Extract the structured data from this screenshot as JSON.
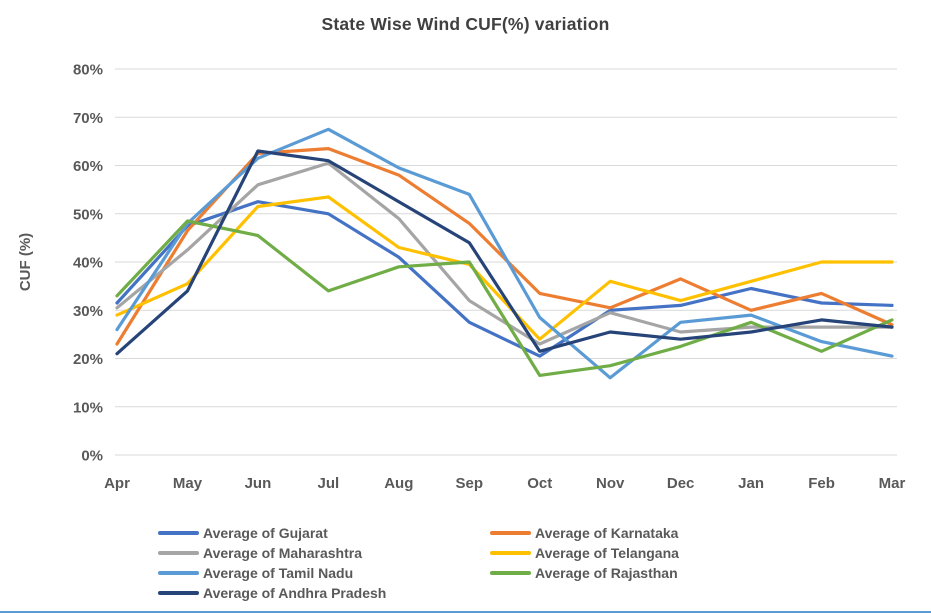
{
  "chart_data": {
    "type": "line",
    "title": "State Wise Wind CUF(%) variation",
    "ylabel": "CUF (%)",
    "categories": [
      "Apr",
      "May",
      "Jun",
      "Jul",
      "Aug",
      "Sep",
      "Oct",
      "Nov",
      "Dec",
      "Jan",
      "Feb",
      "Mar"
    ],
    "y_ticks": [
      "0%",
      "10%",
      "20%",
      "30%",
      "40%",
      "50%",
      "60%",
      "70%",
      "80%"
    ],
    "ylim": [
      0,
      80
    ],
    "grid": true,
    "legend_position": "bottom, two columns",
    "series": [
      {
        "name": "Average of Gujarat",
        "key": "gujarat",
        "color": "#4472C4",
        "values": [
          31.5,
          47.5,
          52.5,
          50,
          41,
          27.5,
          20.5,
          30,
          31,
          34.5,
          31.5,
          31
        ]
      },
      {
        "name": "Average of Karnataka",
        "key": "karnataka",
        "color": "#ED7D31",
        "values": [
          23,
          46.5,
          62.5,
          63.5,
          58,
          48,
          33.5,
          30.5,
          36.5,
          30,
          33.5,
          27
        ]
      },
      {
        "name": "Average of Maharashtra",
        "key": "maharashtra",
        "color": "#A5A5A5",
        "values": [
          30.5,
          42.5,
          56,
          60.5,
          49,
          32,
          23,
          29.5,
          25.5,
          26.5,
          26.5,
          26.5
        ]
      },
      {
        "name": "Average of Telangana",
        "key": "telangana",
        "color": "#FFC000",
        "values": [
          29,
          35.5,
          51.5,
          53.5,
          43,
          39.5,
          24,
          36,
          32,
          36,
          40,
          40
        ]
      },
      {
        "name": "Average of Tamil Nadu",
        "key": "tamil-nadu",
        "color": "#5B9BD5",
        "values": [
          26,
          48,
          61.5,
          67.5,
          59.5,
          54,
          28.5,
          16,
          27.5,
          29,
          23.5,
          20.5
        ]
      },
      {
        "name": "Average of Rajasthan",
        "key": "rajasthan",
        "color": "#70AD47",
        "values": [
          33,
          48.5,
          45.5,
          34,
          39,
          40,
          16.5,
          18.5,
          22.5,
          27.5,
          21.5,
          28
        ]
      },
      {
        "name": "Average of Andhra Pradesh",
        "key": "andhra-pradesh",
        "color": "#264478",
        "values": [
          21,
          34,
          63,
          61,
          52.5,
          44,
          21.5,
          25.5,
          24,
          25.5,
          28,
          26.5
        ]
      }
    ]
  }
}
